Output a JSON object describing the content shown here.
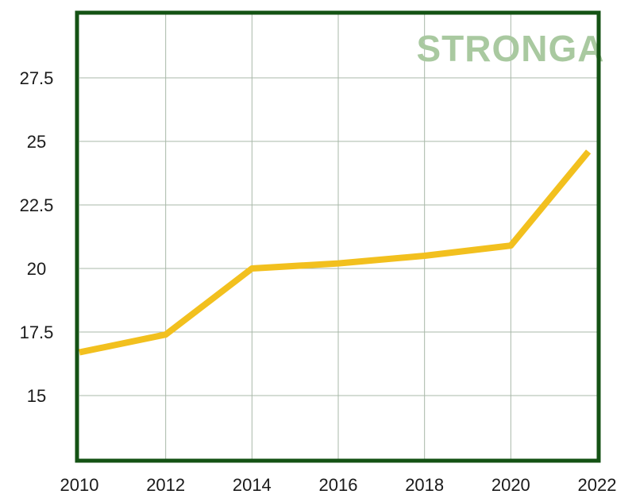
{
  "watermark": {
    "text": "STRONGA",
    "color": "#a9c9a0"
  },
  "colors": {
    "frame": "#145214",
    "grid": "#a9b8a9",
    "line": "#f2c01e"
  },
  "chart_data": {
    "type": "line",
    "title": "",
    "xlabel": "",
    "ylabel": "",
    "xlim": [
      2010,
      2022
    ],
    "ylim": [
      12.5,
      30
    ],
    "grid": true,
    "x_ticks": [
      2010,
      2012,
      2014,
      2016,
      2018,
      2020,
      2022
    ],
    "x_tick_labels": [
      "2010",
      "2012",
      "2014",
      "2016",
      "2018",
      "2020",
      "2022"
    ],
    "y_ticks": [
      15,
      17.5,
      20,
      22.5,
      25,
      27.5
    ],
    "y_tick_labels": [
      "15",
      "17.5",
      "20",
      "22.5",
      "25",
      "27.5"
    ],
    "series": [
      {
        "x": [
          2010,
          2012,
          2014,
          2016,
          2018,
          2020,
          2021.8
        ],
        "values": [
          16.7,
          17.4,
          20.0,
          20.2,
          20.5,
          20.9,
          24.6
        ]
      }
    ]
  }
}
